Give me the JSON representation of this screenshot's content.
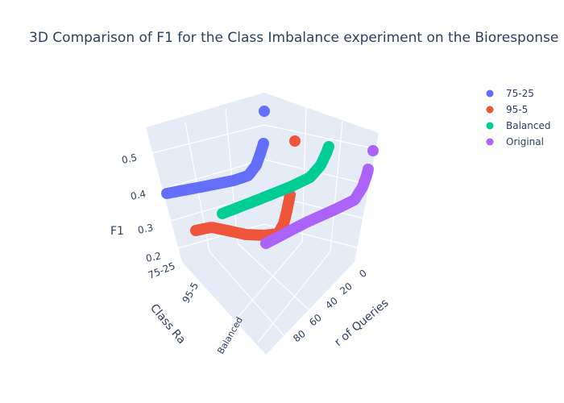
{
  "chart_data": {
    "type": "scatter3d",
    "title": "3D Comparison of F1 for the Class Imbalance experiment on the Bioresponse",
    "x_axis": {
      "label": "Number of Queries",
      "visible_label": "r of Queries",
      "ticks": [
        "0",
        "20",
        "40",
        "60",
        "80"
      ]
    },
    "y_axis": {
      "label": "Class Ratio",
      "visible_label": "Class Ra",
      "ticks": [
        "75-25",
        "95-5",
        "Balanced"
      ]
    },
    "z_axis": {
      "label": "F1",
      "ticks": [
        "0.2",
        "0.3",
        "0.4",
        "0.5"
      ],
      "range": [
        0.17,
        0.53
      ]
    },
    "legend": {
      "position": "top-right"
    },
    "series": [
      {
        "name": "75-25",
        "color": "#636efa"
      },
      {
        "name": "95-5",
        "color": "#EF553B"
      },
      {
        "name": "Balanced",
        "color": "#00cc96"
      },
      {
        "name": "Original",
        "color": "#ab63fa"
      }
    ]
  }
}
